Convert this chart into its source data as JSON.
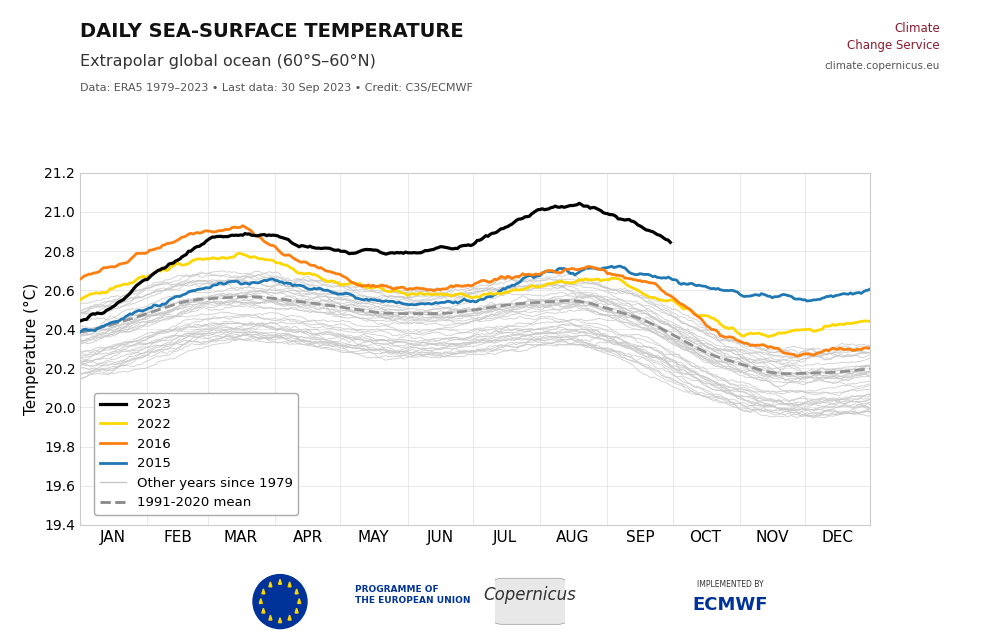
{
  "title": "DAILY SEA-SURFACE TEMPERATURE",
  "subtitle": "Extrapolar global ocean (60°S–60°N)",
  "data_note": "Data: ERA5 1979–2023 • Last data: 30 Sep 2023 • Credit: C3S/ECMWF",
  "ylabel": "Temperature (°C)",
  "ylim": [
    19.4,
    21.2
  ],
  "yticks": [
    19.4,
    19.6,
    19.8,
    20.0,
    20.2,
    20.4,
    20.6,
    20.8,
    21.0,
    21.2
  ],
  "months": [
    "JAN",
    "FEB",
    "MAR",
    "APR",
    "MAY",
    "JUN",
    "JUL",
    "AUG",
    "SEP",
    "OCT",
    "NOV",
    "DEC"
  ],
  "color_2023": "#000000",
  "color_2022": "#FFD700",
  "color_2016": "#FF7F0E",
  "color_2015": "#1F77B4",
  "color_other": "#c8c8c8",
  "color_mean": "#888888",
  "lw_highlight": 2.0,
  "lw_other": 0.6,
  "lw_mean": 2.0,
  "background_color": "#ffffff"
}
